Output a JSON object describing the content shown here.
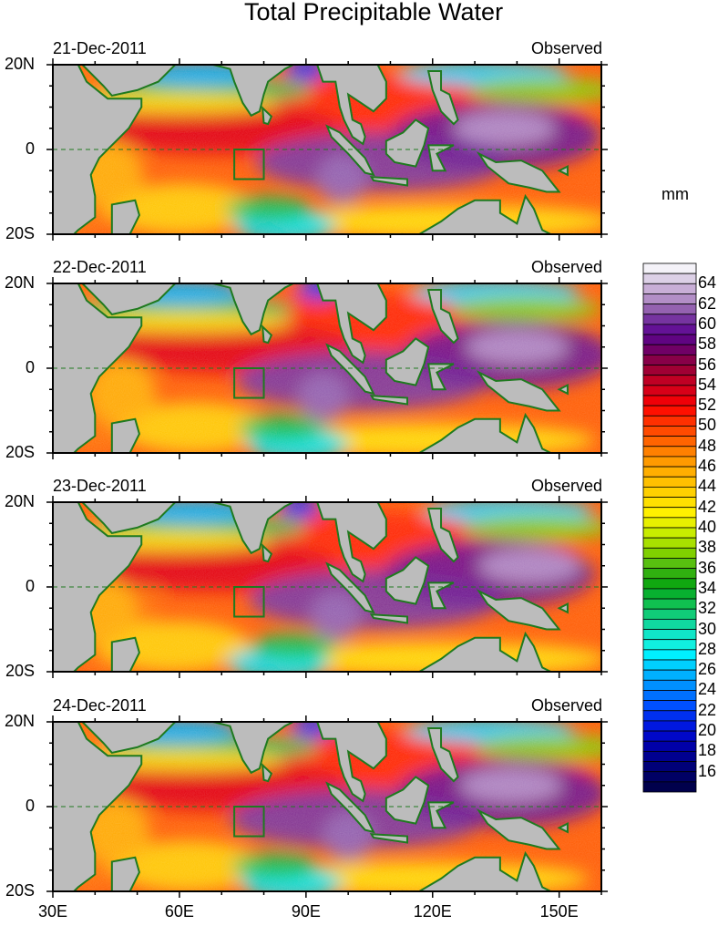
{
  "title": "Total Precipitable Water",
  "units": "mm",
  "panels": [
    {
      "date": "21-Dec-2011",
      "label": "Observed"
    },
    {
      "date": "22-Dec-2011",
      "label": "Observed"
    },
    {
      "date": "23-Dec-2011",
      "label": "Observed"
    },
    {
      "date": "24-Dec-2011",
      "label": "Observed"
    }
  ],
  "lat_labels": [
    "20N",
    "0",
    "20S"
  ],
  "lon_labels": [
    "30E",
    "60E",
    "90E",
    "120E",
    "150E"
  ],
  "colorbar": {
    "min": 14,
    "max": 66,
    "labels": [
      "64",
      "62",
      "60",
      "58",
      "56",
      "54",
      "52",
      "50",
      "48",
      "46",
      "44",
      "42",
      "40",
      "38",
      "36",
      "34",
      "32",
      "30",
      "28",
      "26",
      "24",
      "22",
      "20",
      "18",
      "16"
    ],
    "colors_top_to_bottom": [
      "#f4f2f8",
      "#dcd0e6",
      "#c8aed6",
      "#b28ec6",
      "#9462b0",
      "#7634a0",
      "#641296",
      "#600482",
      "#700066",
      "#880048",
      "#a00034",
      "#c00024",
      "#d80018",
      "#f00008",
      "#ff1000",
      "#ff3000",
      "#ff4a00",
      "#ff6400",
      "#ff8000",
      "#ff9a00",
      "#ffae00",
      "#ffc000",
      "#ffd000",
      "#ffe000",
      "#fff000",
      "#e8f000",
      "#c8ec00",
      "#a8e000",
      "#80d000",
      "#58c010",
      "#30b010",
      "#10a810",
      "#08b030",
      "#10c050",
      "#10cc78",
      "#10d8a0",
      "#10e6c8",
      "#10f0e0",
      "#00f0ff",
      "#00d0ff",
      "#00b0ff",
      "#0090ff",
      "#0070ff",
      "#0050ff",
      "#0030f0",
      "#0018e0",
      "#0008c8",
      "#0000a8",
      "#000090",
      "#000078",
      "#000064",
      "#00004c"
    ]
  },
  "highlight_box": {
    "lon": [
      73,
      80
    ],
    "lat": [
      0,
      -7
    ]
  }
}
